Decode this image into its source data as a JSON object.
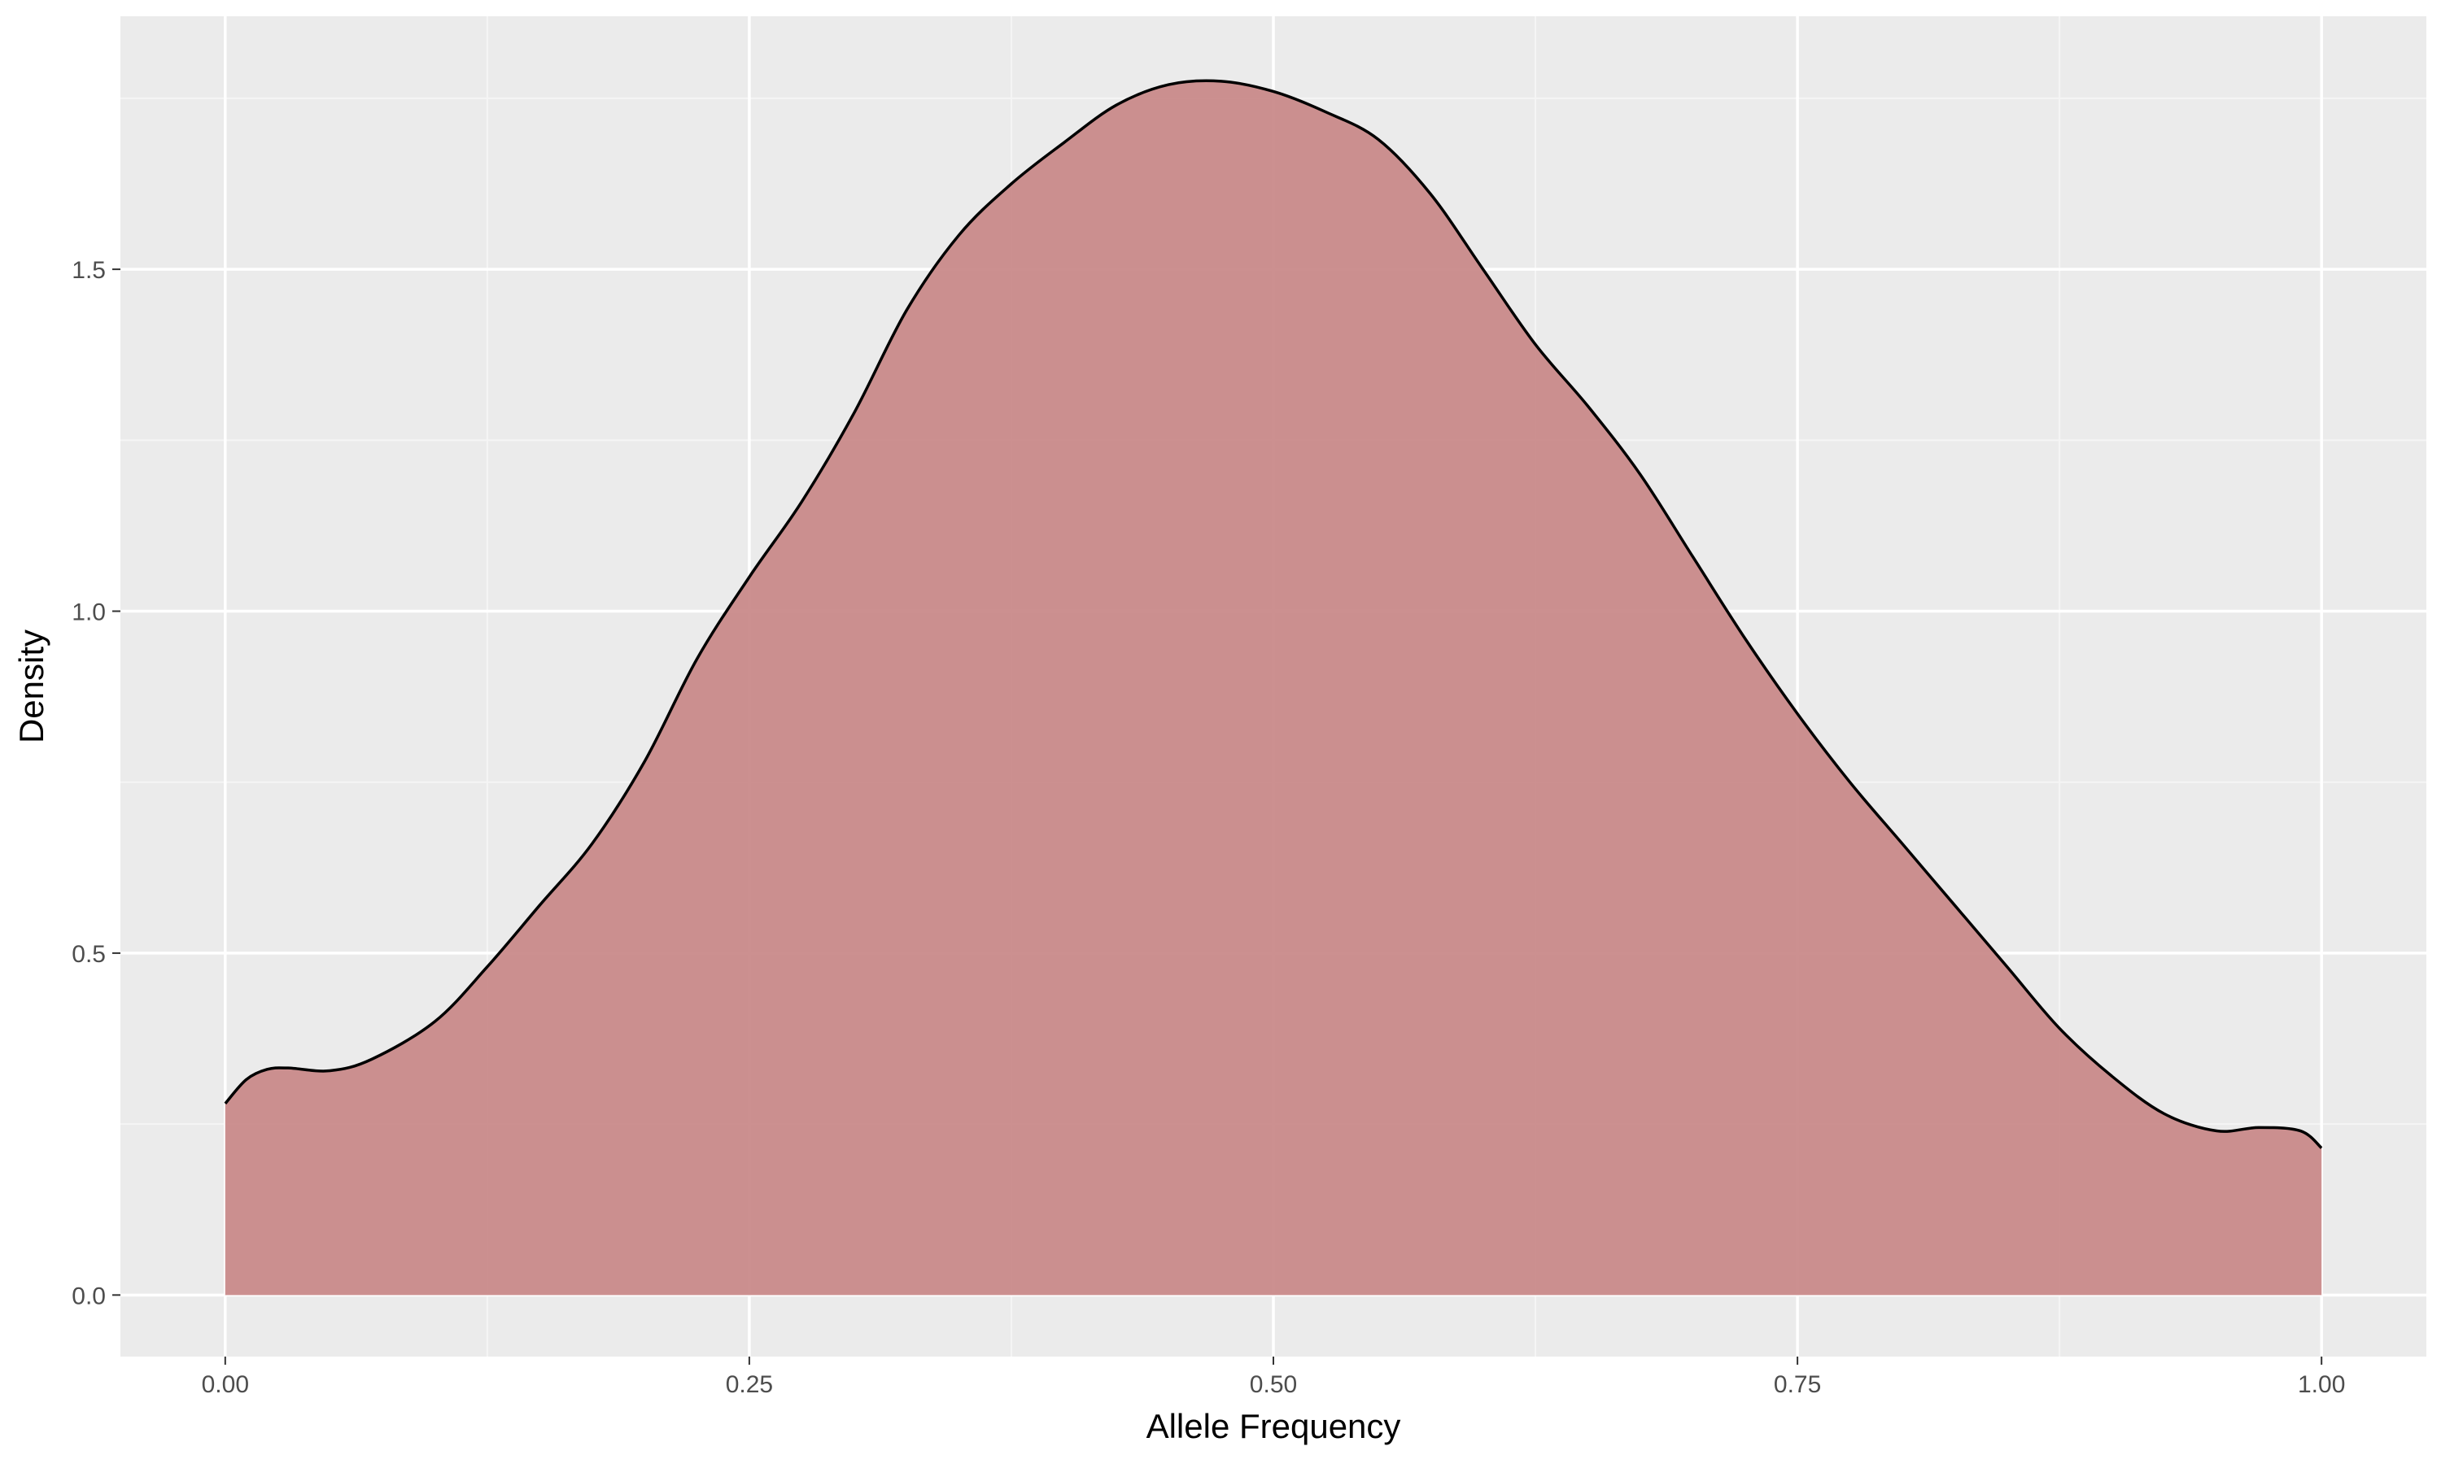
{
  "colors": {
    "panel_background": "#EBEBEB",
    "grid_major": "#FFFFFF",
    "grid_minor": "#F5F5F5",
    "density_fill": "#C88888",
    "density_line": "#000000",
    "tick_text": "#4D4D4D",
    "tick_mark": "#333333"
  },
  "chart_data": {
    "type": "area",
    "subtype": "density",
    "title": "",
    "xlabel": "Allele Frequency",
    "ylabel": "Density",
    "xlim": [
      -0.05,
      1.05
    ],
    "ylim": [
      -0.09,
      1.87
    ],
    "x_ticks": [
      0,
      0.25,
      0.5,
      0.75,
      1
    ],
    "x_tick_labels": [
      "0.00",
      "0.25",
      "0.50",
      "0.75",
      "1.00"
    ],
    "y_ticks": [
      0,
      0.5,
      1,
      1.5
    ],
    "y_tick_labels": [
      "0.0",
      "0.5",
      "1.0",
      "1.5"
    ],
    "x_minor_ticks": [
      0.125,
      0.375,
      0.625,
      0.875
    ],
    "y_minor_ticks": [
      0.25,
      0.75,
      1.25,
      1.75
    ],
    "grid": true,
    "legend": "none",
    "series": [
      {
        "x": [
          0.0,
          0.01,
          0.02,
          0.03,
          0.05,
          0.07,
          0.1,
          0.125,
          0.15,
          0.175,
          0.2,
          0.225,
          0.25,
          0.275,
          0.3,
          0.325,
          0.35,
          0.375,
          0.4,
          0.425,
          0.45,
          0.475,
          0.5,
          0.525,
          0.55,
          0.575,
          0.6,
          0.625,
          0.65,
          0.675,
          0.7,
          0.725,
          0.75,
          0.775,
          0.8,
          0.825,
          0.85,
          0.875,
          0.9,
          0.925,
          0.95,
          0.97,
          0.99,
          1.0
        ],
        "y": [
          0.28,
          0.315,
          0.33,
          0.332,
          0.328,
          0.345,
          0.4,
          0.48,
          0.57,
          0.66,
          0.78,
          0.93,
          1.05,
          1.16,
          1.29,
          1.44,
          1.55,
          1.625,
          1.685,
          1.74,
          1.77,
          1.775,
          1.76,
          1.73,
          1.69,
          1.61,
          1.5,
          1.39,
          1.3,
          1.2,
          1.08,
          0.96,
          0.85,
          0.75,
          0.66,
          0.57,
          0.48,
          0.39,
          0.32,
          0.265,
          0.24,
          0.245,
          0.24,
          0.215
        ]
      }
    ]
  }
}
